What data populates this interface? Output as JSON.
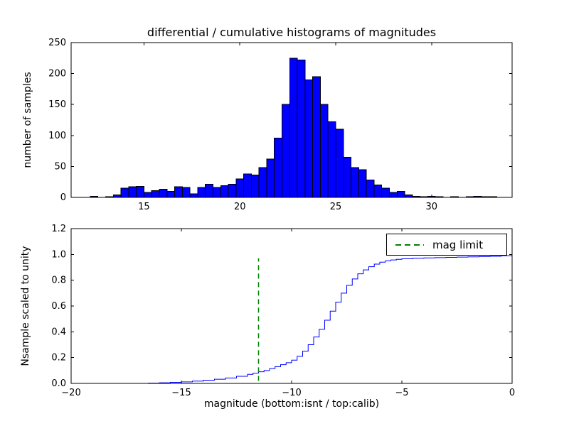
{
  "figure": {
    "background": "#ffffff"
  },
  "chart_data": [
    {
      "type": "bar",
      "subplot": "top",
      "title": "differential / cumulative histograms of magnitudes",
      "xlabel": "",
      "ylabel": "number of samples",
      "bar_color": "#0000ff",
      "bar_edge_color": "#000000",
      "bin_start": 11.8,
      "bin_width": 0.4,
      "values": [
        0,
        2,
        0,
        1,
        4,
        15,
        17,
        18,
        8,
        11,
        13,
        10,
        17,
        16,
        6,
        16,
        21,
        16,
        19,
        21,
        30,
        38,
        36,
        48,
        62,
        96,
        150,
        225,
        222,
        190,
        195,
        150,
        122,
        110,
        65,
        48,
        45,
        28,
        20,
        15,
        8,
        10,
        4,
        2,
        1,
        2,
        1,
        0,
        1,
        0,
        1,
        2,
        1,
        1
      ],
      "xlim": [
        11.2,
        34.2
      ],
      "ylim": [
        0,
        250
      ],
      "xticks": [
        15,
        20,
        25,
        30
      ],
      "xtick_labels": [
        "15",
        "20",
        "25",
        "30"
      ],
      "yticks": [
        0,
        50,
        100,
        150,
        200,
        250
      ],
      "ytick_labels": [
        "0",
        "50",
        "100",
        "150",
        "200",
        "250"
      ],
      "grid": false
    },
    {
      "type": "line",
      "subplot": "bottom",
      "title": "",
      "xlabel": "magnitude (bottom:isnt / top:calib)",
      "ylabel": "Nsample scaled to unity",
      "line_color": "#0000ff",
      "step": true,
      "x": [
        -20,
        -16.5,
        -16,
        -15.5,
        -15,
        -14.5,
        -14,
        -13.5,
        -13,
        -12.5,
        -12,
        -11.75,
        -11.5,
        -11.25,
        -11,
        -10.75,
        -10.5,
        -10.25,
        -10,
        -9.75,
        -9.5,
        -9.25,
        -9,
        -8.75,
        -8.5,
        -8.25,
        -8,
        -7.75,
        -7.5,
        -7.25,
        -7,
        -6.75,
        -6.5,
        -6.25,
        -6,
        -5.75,
        -5.5,
        -5.25,
        -5,
        -4.5,
        -4,
        -3.5,
        -3,
        -2.5,
        -2,
        -1.5,
        -1,
        -0.5,
        0
      ],
      "y": [
        0,
        0.002,
        0.005,
        0.008,
        0.012,
        0.018,
        0.025,
        0.032,
        0.042,
        0.055,
        0.07,
        0.08,
        0.09,
        0.1,
        0.115,
        0.13,
        0.145,
        0.16,
        0.18,
        0.21,
        0.25,
        0.3,
        0.36,
        0.42,
        0.49,
        0.56,
        0.63,
        0.7,
        0.76,
        0.81,
        0.85,
        0.88,
        0.905,
        0.925,
        0.94,
        0.95,
        0.957,
        0.962,
        0.966,
        0.97,
        0.973,
        0.975,
        0.977,
        0.979,
        0.981,
        0.983,
        0.985,
        0.99,
        1.0
      ],
      "xlim": [
        -20,
        0
      ],
      "ylim": [
        0,
        1.2
      ],
      "xticks": [
        -20,
        -15,
        -10,
        -5,
        0
      ],
      "xtick_labels": [
        "−20",
        "−15",
        "−10",
        "−5",
        "0"
      ],
      "yticks": [
        0,
        0.2,
        0.4,
        0.6,
        0.8,
        1.0,
        1.2
      ],
      "ytick_labels": [
        "0.0",
        "0.2",
        "0.4",
        "0.6",
        "0.8",
        "1.0",
        "1.2"
      ],
      "mag_limit_line": {
        "x": -11.5,
        "y_range": [
          0.02,
          0.97
        ],
        "color": "#008000",
        "style": "dashed",
        "label": "mag limit"
      },
      "legend": {
        "position": "upper right",
        "entries": [
          {
            "label": "mag limit",
            "color": "#008000",
            "linestyle": "dashed"
          }
        ]
      },
      "grid": false
    }
  ]
}
